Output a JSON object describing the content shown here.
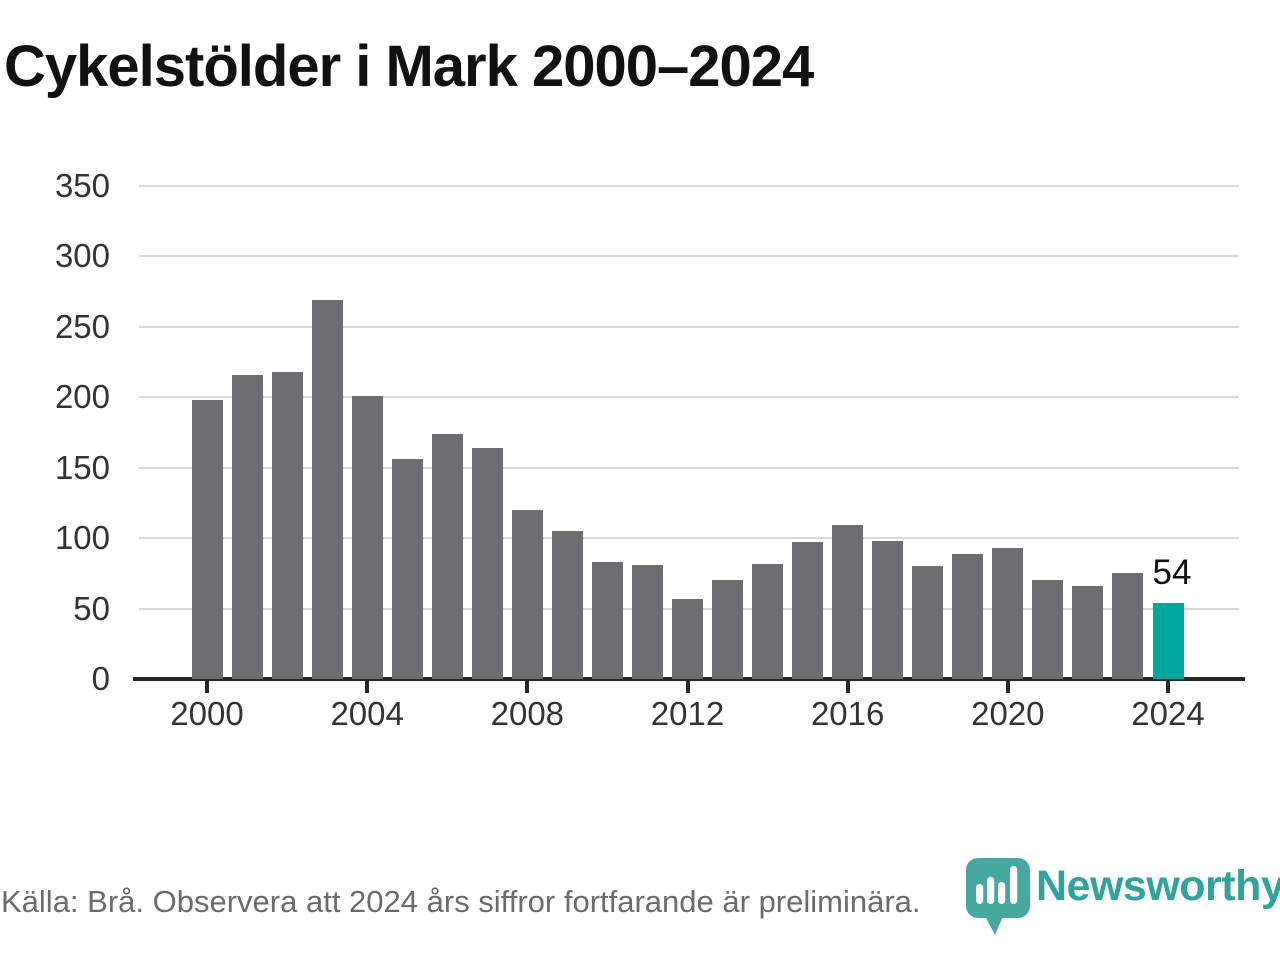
{
  "title": "Cykelstölder i Mark 2000–2024",
  "chart_data": {
    "type": "bar",
    "title": "Cykelstölder i Mark 2000–2024",
    "categories": [
      "2000",
      "2001",
      "2002",
      "2003",
      "2004",
      "2005",
      "2006",
      "2007",
      "2008",
      "2009",
      "2010",
      "2011",
      "2012",
      "2013",
      "2014",
      "2015",
      "2016",
      "2017",
      "2018",
      "2019",
      "2020",
      "2021",
      "2022",
      "2023",
      "2024"
    ],
    "values": [
      198,
      216,
      218,
      269,
      201,
      156,
      174,
      164,
      120,
      105,
      83,
      81,
      57,
      70,
      82,
      97,
      109,
      98,
      80,
      89,
      93,
      70,
      66,
      75,
      54
    ],
    "xlabel": "",
    "ylabel": "",
    "ylim": [
      0,
      350
    ],
    "y_ticks": [
      0,
      50,
      100,
      150,
      200,
      250,
      300,
      350
    ],
    "x_tick_labels": [
      "2000",
      "2004",
      "2008",
      "2012",
      "2016",
      "2020",
      "2024"
    ],
    "x_tick_every": 4,
    "grid": "horizontal",
    "legend": "none",
    "bar_color": "#6d6e71",
    "axis_color": "#262626",
    "gridline_color": "#d9d9d9",
    "highlight": {
      "category": "2024",
      "index": 24,
      "value": 54,
      "label": "54",
      "color": "#00a79e"
    }
  },
  "footer": {
    "source": "Källa: Brå. Observera att 2024 års siffror fortfarande är preliminära."
  },
  "logo": {
    "text": "Newsworthy",
    "color": "#2fa39c",
    "icon_color": "#47a8a1"
  }
}
